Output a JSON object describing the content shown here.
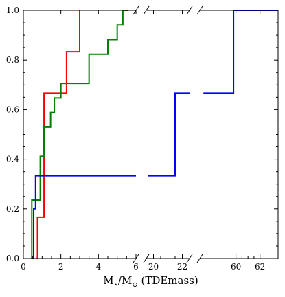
{
  "chart_data": {
    "type": "line",
    "subtype": "broken-x-axis empirical cumulative distribution (step)",
    "xlabel": "M⋆/M⊙ (TDEmass)",
    "xlabel_parts": {
      "m1": "M",
      "sub1": "⋆",
      "slash": "/",
      "m2": "M",
      "sub2": "⊙",
      "rest": " (TDEmass)"
    },
    "ylim": [
      0,
      1
    ],
    "y_ticks": [
      "0.0",
      "0.2",
      "0.4",
      "0.6",
      "0.8",
      "1.0"
    ],
    "y_tick_values": [
      0,
      0.2,
      0.4,
      0.6,
      0.8,
      1.0
    ],
    "x_segments": [
      {
        "xlim": [
          0,
          6
        ],
        "ticks": [
          0,
          2,
          4,
          6
        ],
        "tick_labels": [
          "0",
          "2",
          "4",
          "6"
        ]
      },
      {
        "xlim": [
          19.5,
          22.5
        ],
        "ticks": [
          20,
          22
        ],
        "tick_labels": [
          "20",
          "22"
        ]
      },
      {
        "xlim": [
          57,
          63.5
        ],
        "ticks": [
          60,
          62
        ],
        "tick_labels": [
          "60",
          "62"
        ]
      }
    ],
    "grid": false,
    "legend": "none",
    "series": [
      {
        "color": "#ff0000",
        "points": [
          [
            0.7,
            0
          ],
          [
            0.75,
            0
          ],
          [
            0.75,
            0.1667
          ],
          [
            1.1,
            0.1667
          ],
          [
            1.1,
            0.6667
          ],
          [
            2.3,
            0.6667
          ],
          [
            2.3,
            0.8333
          ],
          [
            3.0,
            0.8333
          ],
          [
            3.0,
            1.0
          ]
        ]
      },
      {
        "color": "#008000",
        "points": [
          [
            0.45,
            0
          ],
          [
            0.45,
            0.2353
          ],
          [
            0.9,
            0.2353
          ],
          [
            0.9,
            0.4118
          ],
          [
            1.1,
            0.4118
          ],
          [
            1.1,
            0.5294
          ],
          [
            1.45,
            0.5294
          ],
          [
            1.45,
            0.5882
          ],
          [
            1.65,
            0.5882
          ],
          [
            1.65,
            0.6471
          ],
          [
            2.0,
            0.6471
          ],
          [
            2.0,
            0.7059
          ],
          [
            3.5,
            0.7059
          ],
          [
            3.5,
            0.8235
          ],
          [
            4.5,
            0.8235
          ],
          [
            4.5,
            0.8824
          ],
          [
            5.0,
            0.8824
          ],
          [
            5.0,
            0.9412
          ],
          [
            5.3,
            0.9412
          ],
          [
            5.3,
            1.0
          ],
          [
            5.6,
            1.0
          ]
        ]
      },
      {
        "color": "#0000ff",
        "points": [
          [
            0.55,
            0
          ],
          [
            0.55,
            0.2
          ],
          [
            0.65,
            0.2
          ],
          [
            0.65,
            0.3333
          ],
          [
            6.0,
            0.3333
          ],
          [
            19.6,
            0.3333
          ],
          [
            21.5,
            0.3333
          ],
          [
            21.5,
            0.6667
          ],
          [
            22.5,
            0.6667
          ],
          [
            57.3,
            0.6667
          ],
          [
            59.8,
            0.6667
          ],
          [
            59.8,
            1.0
          ],
          [
            63.5,
            1.0
          ]
        ]
      }
    ]
  }
}
